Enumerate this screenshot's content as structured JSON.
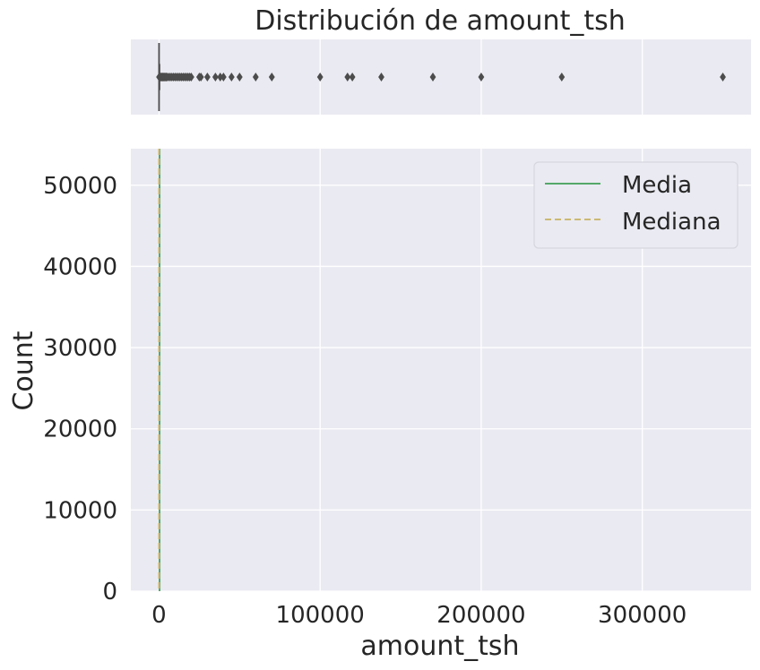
{
  "chart_data": [
    {
      "type": "box",
      "title": "Distribución de amount_tsh",
      "xlim": [
        -17500,
        367500
      ],
      "median": 0,
      "q1": 0,
      "q3": 20,
      "whisker_low": 0,
      "whisker_high": 50,
      "outliers": [
        100,
        200,
        300,
        500,
        700,
        1000,
        1500,
        2000,
        2500,
        3000,
        3500,
        4000,
        4500,
        5000,
        6000,
        7000,
        8000,
        9000,
        10000,
        11000,
        12000,
        13000,
        14000,
        15000,
        16000,
        17000,
        18000,
        19000,
        20000,
        25000,
        26000,
        30000,
        35000,
        38000,
        40000,
        45000,
        50000,
        60000,
        70000,
        100000,
        117000,
        120000,
        138000,
        170000,
        200000,
        250000,
        350000
      ],
      "colors": {
        "box": "#4c4c4c",
        "outlier": "#4c4c4c",
        "background": "#eaeaf2",
        "grid": "#ffffff"
      }
    },
    {
      "type": "histogram",
      "xlabel": "amount_tsh",
      "ylabel": "Count",
      "xlim": [
        -17500,
        367500
      ],
      "ylim": [
        0,
        54500
      ],
      "xticks": [
        0,
        100000,
        200000,
        300000
      ],
      "yticks": [
        0,
        10000,
        20000,
        30000,
        40000,
        50000
      ],
      "lines": [
        {
          "name": "Media",
          "x": 317.65,
          "style": "solid",
          "color": "#55a868"
        },
        {
          "name": "Mediana",
          "x": 0,
          "style": "dashed",
          "color": "#ccb974"
        }
      ],
      "legend": {
        "position": "top-right",
        "entries": [
          "Media",
          "Mediana"
        ]
      }
    }
  ]
}
